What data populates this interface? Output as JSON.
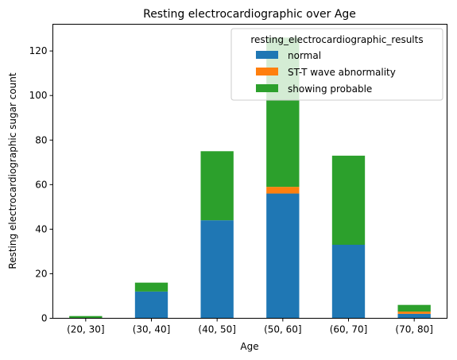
{
  "chart_data": {
    "type": "bar",
    "stacked": true,
    "title": "Resting electrocardiographic over Age",
    "xlabel": "Age",
    "ylabel": "Resting electrocardiographic sugar count",
    "categories": [
      "(20, 30]",
      "(30, 40]",
      "(40, 50]",
      "(50, 60]",
      "(60, 70]",
      "(70, 80]"
    ],
    "ylim": [
      0,
      132
    ],
    "yticks": [
      0,
      20,
      40,
      60,
      80,
      100,
      120
    ],
    "legend_title": "resting_electrocardiographic_results",
    "legend_position": "top-right",
    "series": [
      {
        "name": "normal",
        "color": "#1f77b4",
        "values": [
          0,
          12,
          44,
          56,
          33,
          2
        ]
      },
      {
        "name": "ST-T wave abnormality",
        "color": "#ff7f0e",
        "values": [
          0,
          0,
          0,
          3,
          0,
          1
        ]
      },
      {
        "name": "showing probable",
        "color": "#2ca02c",
        "values": [
          1,
          4,
          31,
          67,
          40,
          3
        ]
      }
    ]
  }
}
